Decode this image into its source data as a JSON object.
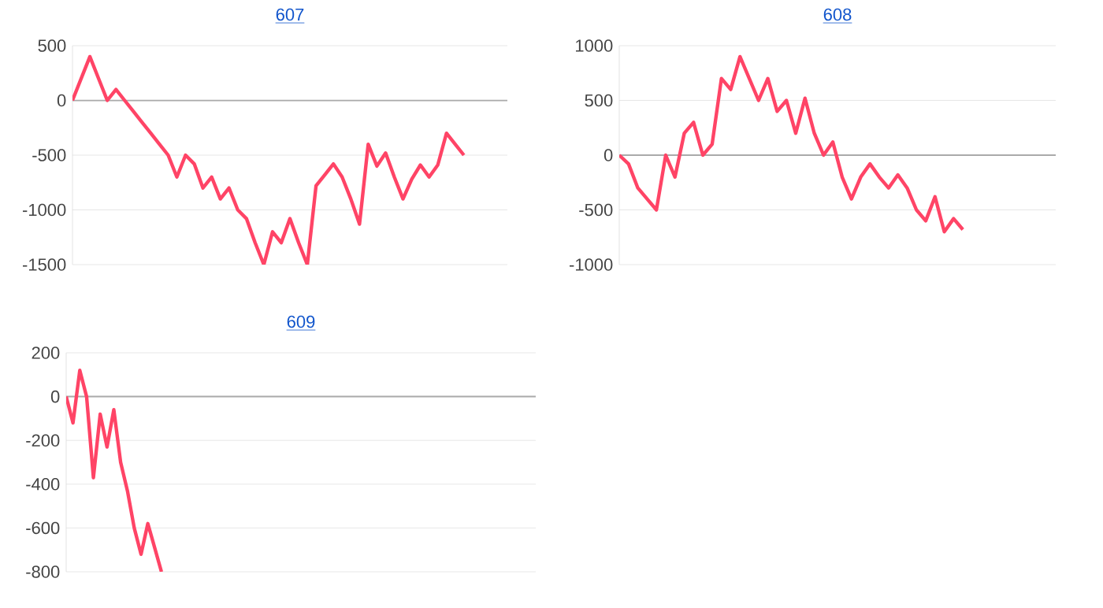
{
  "chart_data": [
    {
      "type": "line",
      "title": "607",
      "categories": [
        null,
        null,
        null,
        null,
        null,
        null,
        null,
        null,
        null,
        null,
        null,
        null,
        null,
        null,
        null,
        null,
        null,
        null,
        null,
        null,
        null,
        null,
        null,
        null,
        null,
        null,
        null,
        null,
        null,
        null,
        null,
        null,
        null,
        null,
        null,
        null,
        null,
        null,
        null,
        null,
        null,
        null,
        null,
        null,
        null,
        null,
        null,
        null,
        null,
        null,
        null
      ],
      "series": [
        {
          "color": "#ff4466",
          "values": [
            0,
            200,
            400,
            200,
            0,
            100,
            0,
            -100,
            -200,
            -300,
            -400,
            -500,
            -700,
            -500,
            -580,
            -800,
            -700,
            -900,
            -800,
            -1000,
            -1080,
            -1300,
            -1500,
            -1200,
            -1300,
            -1080,
            -1300,
            -1500,
            -780,
            -680,
            -580,
            -700,
            -900,
            -1130,
            -400,
            -600,
            -480,
            -700,
            -900,
            -720,
            -590,
            -700,
            -590,
            -300,
            -400,
            -500,
            null,
            null,
            null,
            null,
            null
          ]
        }
      ],
      "ylim": [
        -1500,
        500
      ],
      "yticks": [
        -1500,
        -1000,
        -500,
        0,
        500
      ],
      "grid": "y",
      "legend": false,
      "marker": "none",
      "line_style": "solid"
    },
    {
      "type": "line",
      "title": "608",
      "categories": [
        null,
        null,
        null,
        null,
        null,
        null,
        null,
        null,
        null,
        null,
        null,
        null,
        null,
        null,
        null,
        null,
        null,
        null,
        null,
        null,
        null,
        null,
        null,
        null,
        null,
        null,
        null,
        null,
        null,
        null,
        null,
        null,
        null,
        null,
        null,
        null,
        null,
        null,
        null,
        null,
        null,
        null,
        null,
        null,
        null,
        null,
        null,
        null
      ],
      "series": [
        {
          "color": "#ff4466",
          "values": [
            0,
            -80,
            -300,
            -400,
            -500,
            0,
            -200,
            200,
            300,
            0,
            100,
            700,
            600,
            900,
            700,
            500,
            700,
            400,
            500,
            200,
            520,
            200,
            0,
            120,
            -200,
            -400,
            -200,
            -80,
            -200,
            -300,
            -180,
            -300,
            -500,
            -600,
            -380,
            -700,
            -580,
            -680,
            null,
            null,
            null,
            null,
            null,
            null,
            null,
            null,
            null,
            null
          ]
        }
      ],
      "ylim": [
        -1000,
        1000
      ],
      "yticks": [
        -1000,
        -500,
        0,
        500,
        1000
      ],
      "grid": "y",
      "legend": false,
      "marker": "none",
      "line_style": "solid"
    },
    {
      "type": "line",
      "title": "609",
      "categories": [
        null,
        null,
        null,
        null,
        null,
        null,
        null,
        null,
        null,
        null,
        null,
        null,
        null,
        null,
        null,
        null,
        null,
        null,
        null,
        null,
        null,
        null,
        null,
        null,
        null,
        null,
        null,
        null,
        null,
        null,
        null,
        null,
        null,
        null,
        null,
        null,
        null,
        null,
        null,
        null,
        null,
        null,
        null,
        null,
        null,
        null,
        null,
        null,
        null,
        null,
        null,
        null,
        null,
        null,
        null,
        null,
        null,
        null,
        null,
        null,
        null,
        null,
        null,
        null,
        null,
        null,
        null,
        null,
        null,
        null
      ],
      "series": [
        {
          "color": "#ff4466",
          "values": [
            0,
            -120,
            120,
            0,
            -370,
            -80,
            -230,
            -60,
            -300,
            -430,
            -600,
            -720,
            -580,
            -690,
            -800,
            null,
            null,
            null,
            null,
            null,
            null,
            null,
            null,
            null,
            null,
            null,
            null,
            null,
            null,
            null,
            null,
            null,
            null,
            null,
            null,
            null,
            null,
            null,
            null,
            null,
            null,
            null,
            null,
            null,
            null,
            null,
            null,
            null,
            null,
            null,
            null,
            null,
            null,
            null,
            null,
            null,
            null,
            null,
            null,
            null,
            null,
            null,
            null,
            null,
            null,
            null,
            null,
            null,
            null,
            null
          ]
        }
      ],
      "ylim": [
        -800,
        200
      ],
      "yticks": [
        -800,
        -600,
        -400,
        -200,
        0,
        200
      ],
      "grid": "y",
      "legend": false,
      "marker": "none",
      "line_style": "solid"
    }
  ]
}
